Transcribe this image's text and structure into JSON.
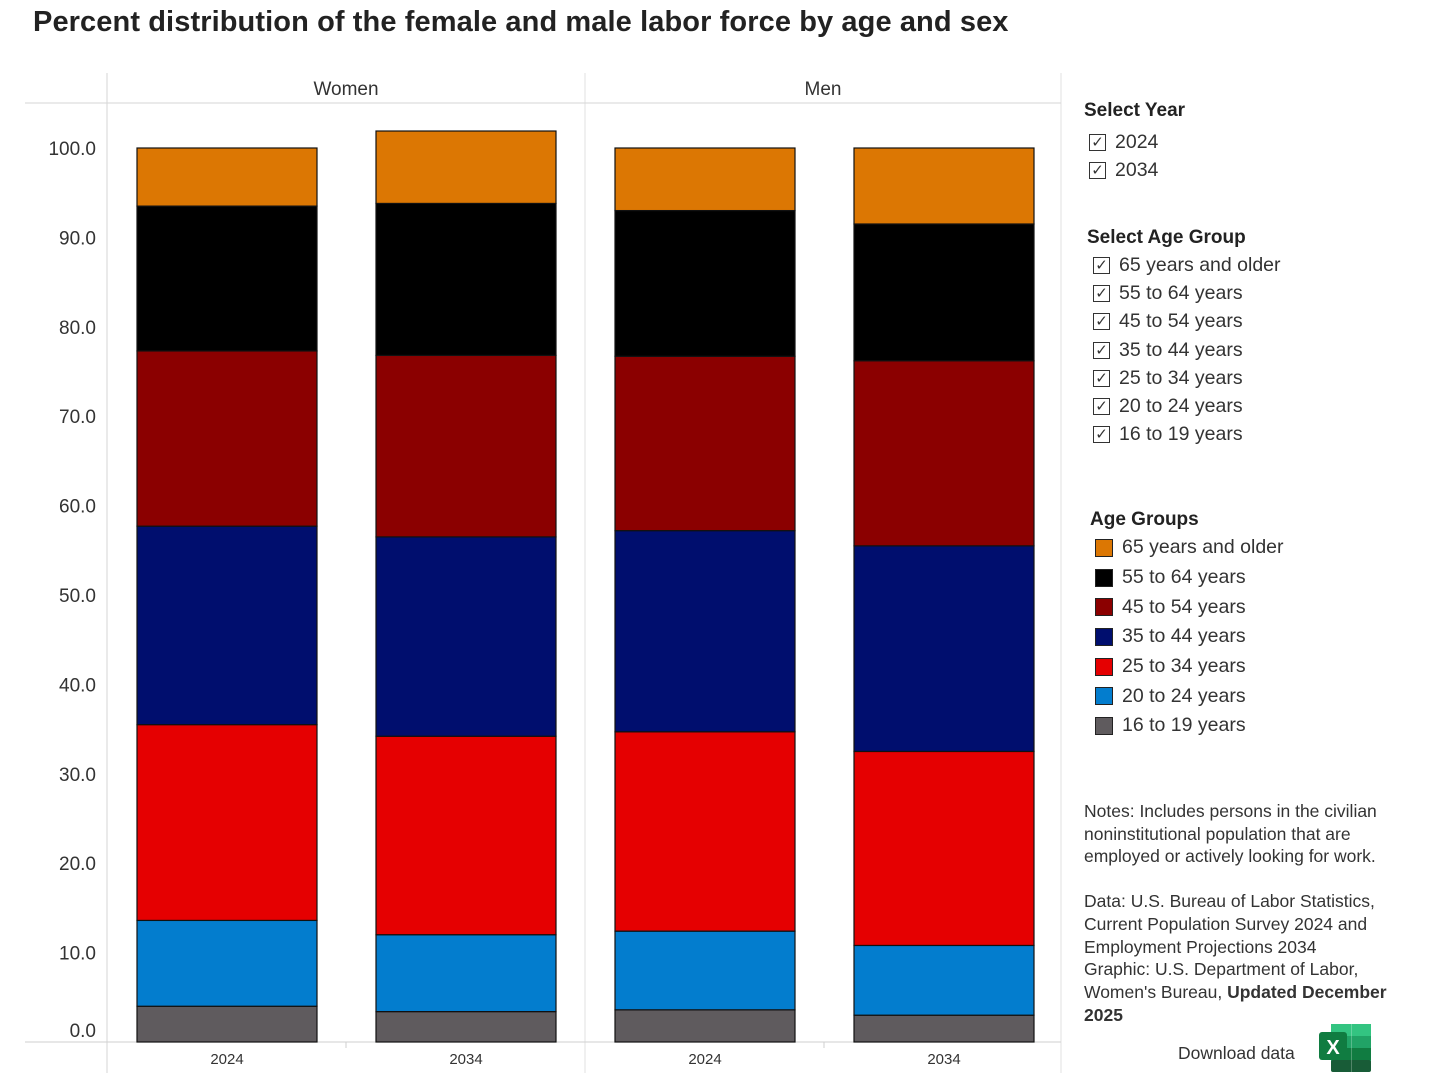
{
  "title": "Percent distribution of the female and male labor force by age and sex",
  "chart_data": {
    "type": "bar",
    "stacked": true,
    "facets": [
      "Women",
      "Men"
    ],
    "categories": [
      "2024",
      "2034"
    ],
    "yticks": [
      "100.0",
      "90.0",
      "80.0",
      "70.0",
      "60.0",
      "50.0",
      "40.0",
      "30.0",
      "20.0",
      "10.0",
      "0.0"
    ],
    "ylim": [
      0,
      100
    ],
    "series": [
      {
        "name": "16 to 19 years",
        "color": "#5f5b5e",
        "values": {
          "Women": [
            4.0,
            3.4
          ],
          "Men": [
            3.6,
            3.0
          ]
        }
      },
      {
        "name": "20 to 24 years",
        "color": "#037dce",
        "values": {
          "Women": [
            9.6,
            8.6
          ],
          "Men": [
            8.8,
            7.8
          ]
        }
      },
      {
        "name": "25 to 34 years",
        "color": "#e50001",
        "values": {
          "Women": [
            21.9,
            22.2
          ],
          "Men": [
            22.3,
            21.7
          ]
        }
      },
      {
        "name": "35 to 44 years",
        "color": "#000e6e",
        "values": {
          "Women": [
            22.2,
            22.3
          ],
          "Men": [
            22.5,
            23.0
          ]
        }
      },
      {
        "name": "45 to 54 years",
        "color": "#8b0000",
        "values": {
          "Women": [
            19.6,
            20.3
          ],
          "Men": [
            19.5,
            20.7
          ]
        }
      },
      {
        "name": "55 to 64 years",
        "color": "#000000",
        "values": {
          "Women": [
            16.2,
            17.0
          ],
          "Men": [
            16.3,
            15.3
          ]
        }
      },
      {
        "name": "65 years and older",
        "color": "#dc7703",
        "values": {
          "Women": [
            6.5,
            8.1
          ],
          "Men": [
            7.0,
            8.5
          ]
        }
      }
    ]
  },
  "filters": {
    "year": {
      "title": "Select Year",
      "options": [
        "2024",
        "2034"
      ],
      "check_glyph": "✓"
    },
    "age_group": {
      "title": "Select Age Group",
      "options": [
        "65 years and older",
        "55 to 64 years",
        "45 to 54 years",
        "35 to 44 years",
        "25 to 34 years",
        "20 to 24 years",
        "16 to 19 years"
      ]
    }
  },
  "legend": {
    "title": "Age Groups",
    "items": [
      {
        "label": "65 years and older",
        "color": "#dc7703"
      },
      {
        "label": "55 to 64 years",
        "color": "#000000"
      },
      {
        "label": "45 to 54 years",
        "color": "#8b0000"
      },
      {
        "label": "35 to 44 years",
        "color": "#000e6e"
      },
      {
        "label": "25 to 34 years",
        "color": "#e50001"
      },
      {
        "label": "20 to 24 years",
        "color": "#037dce"
      },
      {
        "label": "16 to 19 years",
        "color": "#5f5b5e"
      }
    ]
  },
  "notes": {
    "text": "Notes: Includes persons in the civilian noninstitutional population that are employed or actively looking for work.",
    "data_source": "Data: U.S. Bureau of Labor Statistics, Current Population Survey 2024 and Employment Projections 2034",
    "graphic_prefix": "Graphic: U.S. Department of Labor, Women's Bureau,",
    "graphic_updated": "Updated December 2025"
  },
  "download": {
    "label": "Download data",
    "icon_letter": "X"
  }
}
